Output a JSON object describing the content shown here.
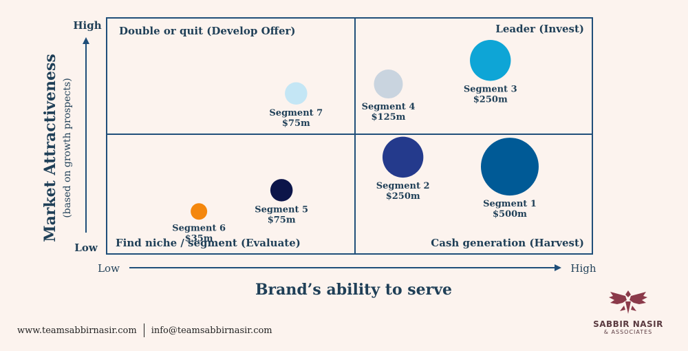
{
  "chart_data": {
    "type": "scatter",
    "title": "",
    "xlabel": "Brand’s ability to serve",
    "ylabel": "Market Attractiveness",
    "ylabel_sub": "(based on growth prospects)",
    "x_low": "Low",
    "x_high": "High",
    "y_low": "Low",
    "y_high": "High",
    "xlim": [
      0,
      100
    ],
    "ylim": [
      0,
      100
    ],
    "quadrants": {
      "top_left": "Double or quit (Develop Offer)",
      "top_right": "Leader (Invest)",
      "bottom_left": "Find niche / segment (Evaluate)",
      "bottom_right": "Cash generation (Harvest)"
    },
    "points": [
      {
        "name": "Segment 1",
        "value": "$500m",
        "x": 83,
        "y": 37,
        "size": 500,
        "color": "#005a96"
      },
      {
        "name": "Segment 2",
        "value": "$250m",
        "x": 61,
        "y": 41,
        "size": 250,
        "color": "#243a8c"
      },
      {
        "name": "Segment 3",
        "value": "$250m",
        "x": 79,
        "y": 82,
        "size": 250,
        "color": "#0ea5d6"
      },
      {
        "name": "Segment 4",
        "value": "$125m",
        "x": 58,
        "y": 72,
        "size": 125,
        "color": "#c9d4df"
      },
      {
        "name": "Segment 5",
        "value": "$75m",
        "x": 36,
        "y": 27,
        "size": 75,
        "color": "#0c1549"
      },
      {
        "name": "Segment 6",
        "value": "$35m",
        "x": 19,
        "y": 18,
        "size": 35,
        "color": "#f4870d"
      },
      {
        "name": "Segment 7",
        "value": "$75m",
        "x": 39,
        "y": 68,
        "size": 75,
        "color": "#c4e6f5"
      }
    ]
  },
  "footer": {
    "website": "www.teamsabbirnasir.com",
    "email": "info@teamsabbirnasir.com"
  },
  "brand": {
    "name": "SABBIR NASIR",
    "sub": "& ASSOCIATES",
    "logo_icon": "eagle-icon"
  },
  "colors": {
    "background": "#fcf3ee",
    "grid": "#1f4e79",
    "text": "#1f3f57"
  }
}
